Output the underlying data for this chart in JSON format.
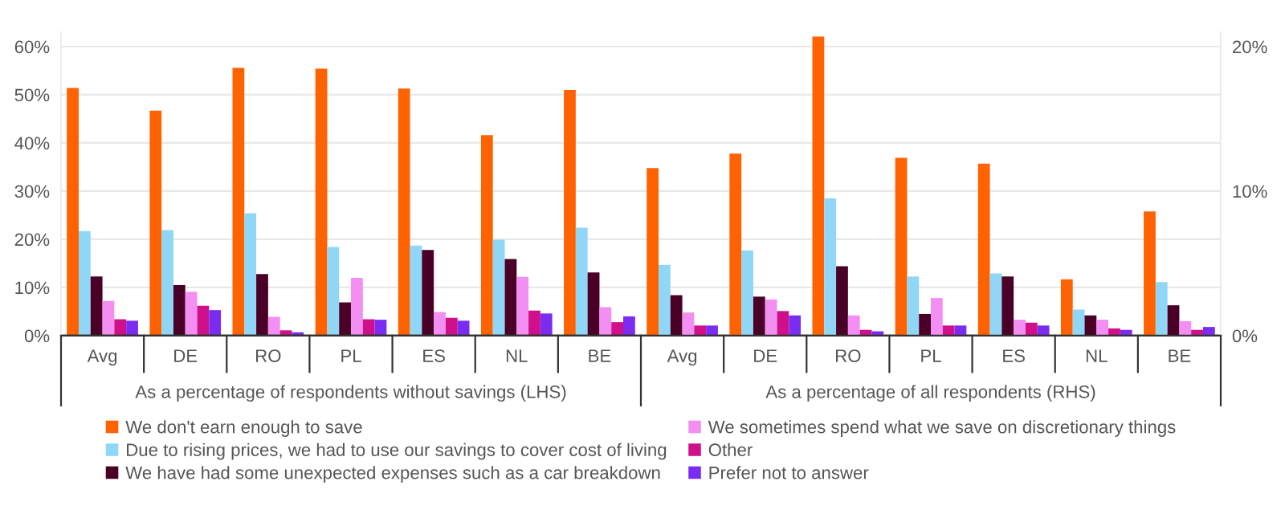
{
  "chart_data": {
    "type": "bar",
    "categories": [
      "Avg",
      "DE",
      "RO",
      "PL",
      "ES",
      "NL",
      "BE",
      "Avg",
      "DE",
      "RO",
      "PL",
      "ES",
      "NL",
      "BE"
    ],
    "series": [
      {
        "name": "We don't earn enough to save",
        "color": "#ff6200",
        "values": [
          51.4,
          46.7,
          55.6,
          55.4,
          51.3,
          41.6,
          51.0,
          null,
          null,
          null,
          null,
          null,
          null,
          null
        ]
      },
      {
        "name": "Due to rising prices, we had to use our savings to cover cost of living",
        "color": "#8fd6f7",
        "values": [
          21.7,
          21.9,
          25.4,
          18.4,
          18.7,
          19.9,
          22.4,
          null,
          null,
          null,
          null,
          null,
          null,
          null
        ]
      },
      {
        "name": "We have had some unexpected expenses such as a car breakdown",
        "color": "#4a0026",
        "values": [
          12.3,
          10.5,
          12.8,
          6.9,
          17.8,
          15.9,
          13.1,
          null,
          null,
          null,
          null,
          null,
          null,
          null
        ]
      },
      {
        "name": "We sometimes spend what we save on discretionary things",
        "color": "#f38ef2",
        "values": [
          7.2,
          9.1,
          3.9,
          12.0,
          4.9,
          12.2,
          5.9,
          null,
          null,
          null,
          null,
          null,
          null,
          null
        ]
      },
      {
        "name": "Other",
        "color": "#d0108a",
        "values": [
          3.4,
          6.2,
          1.1,
          3.4,
          3.7,
          5.2,
          2.8,
          null,
          null,
          null,
          null,
          null,
          null,
          null
        ]
      },
      {
        "name": "Prefer not to answer",
        "color": "#7a2cf0",
        "values": [
          3.1,
          5.3,
          0.7,
          3.3,
          3.1,
          4.6,
          4.0,
          null,
          null,
          null,
          null,
          null,
          null,
          null
        ]
      },
      {
        "color": "#ff6200",
        "axis": "y2",
        "values": [
          null,
          null,
          null,
          null,
          null,
          null,
          null,
          11.6,
          12.6,
          20.7,
          12.3,
          11.9,
          3.9,
          8.6
        ]
      },
      {
        "color": "#8fd6f7",
        "axis": "y2",
        "values": [
          null,
          null,
          null,
          null,
          null,
          null,
          null,
          4.9,
          5.9,
          9.5,
          4.1,
          4.3,
          1.8,
          3.7
        ]
      },
      {
        "color": "#4a0026",
        "axis": "y2",
        "values": [
          null,
          null,
          null,
          null,
          null,
          null,
          null,
          2.8,
          2.7,
          4.8,
          1.5,
          4.1,
          1.4,
          2.1
        ]
      },
      {
        "color": "#f38ef2",
        "axis": "y2",
        "values": [
          null,
          null,
          null,
          null,
          null,
          null,
          null,
          1.6,
          2.5,
          1.4,
          2.6,
          1.1,
          1.1,
          1.0
        ]
      },
      {
        "color": "#d0108a",
        "axis": "y2",
        "values": [
          null,
          null,
          null,
          null,
          null,
          null,
          null,
          0.7,
          1.7,
          0.4,
          0.7,
          0.9,
          0.5,
          0.4
        ]
      },
      {
        "color": "#7a2cf0",
        "axis": "y2",
        "values": [
          null,
          null,
          null,
          null,
          null,
          null,
          null,
          0.7,
          1.4,
          0.3,
          0.7,
          0.7,
          0.4,
          0.6
        ]
      }
    ],
    "ylim": [
      0,
      63
    ],
    "yticks": [
      {
        "value": 0,
        "label": "0%"
      },
      {
        "value": 10,
        "label": "10%"
      },
      {
        "value": 20,
        "label": "20%"
      },
      {
        "value": 30,
        "label": "30%"
      },
      {
        "value": 40,
        "label": "40%"
      },
      {
        "value": 50,
        "label": "50%"
      },
      {
        "value": 60,
        "label": "60%"
      }
    ],
    "y2lim": [
      0,
      21
    ],
    "y2ticks": [
      {
        "value": 0,
        "label": "0%"
      },
      {
        "value": 10,
        "label": "10%"
      },
      {
        "value": 20,
        "label": "20%"
      }
    ],
    "grid": "y",
    "legend": "bottom",
    "annotations": [
      "As a percentage of respondents without savings (LHS)",
      "As a percentage of all respondents (RHS)"
    ]
  }
}
